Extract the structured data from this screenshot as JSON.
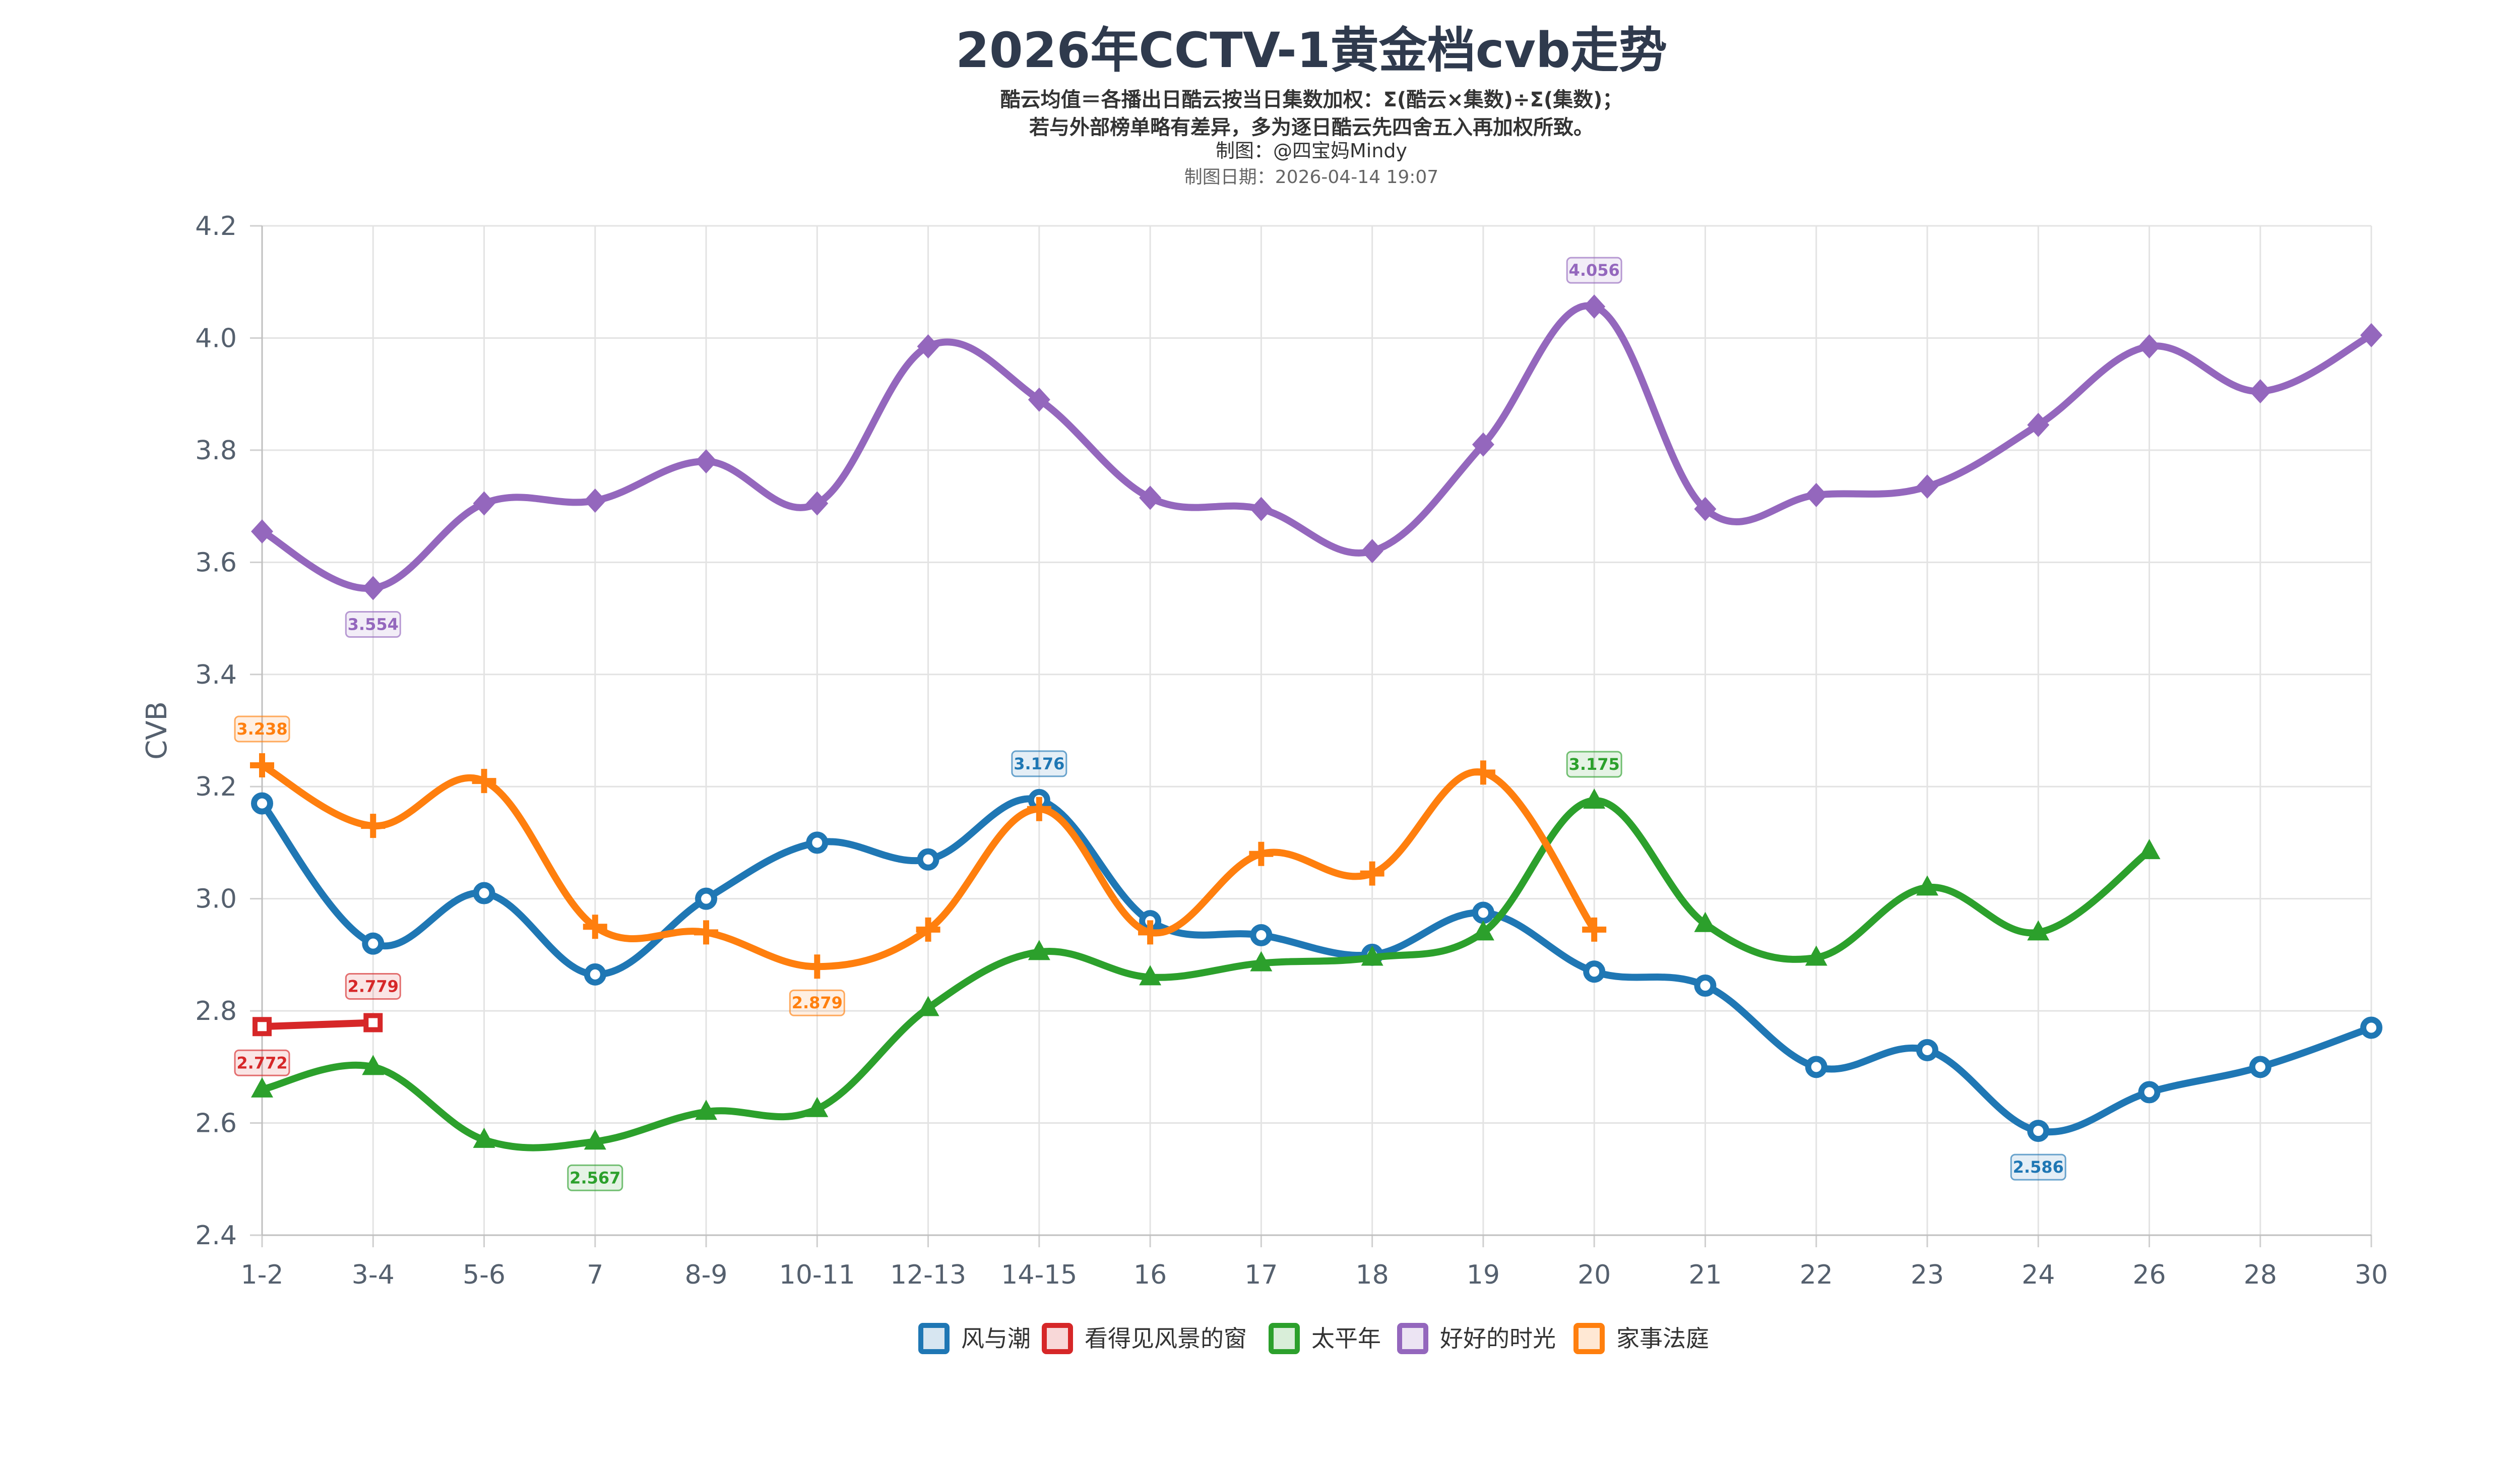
{
  "title": "2026年CCTV-1黄金档cvb走势",
  "subtitle_line1": "酷云均值＝各播出日酷云按当日集数加权：Σ(酷云×集数)÷Σ(集数)；",
  "subtitle_line2": "若与外部榜单略有差异，多为逐日酷云先四舍五入再加权所致。",
  "credit": "制图：@四宝妈Mindy",
  "date": "制图日期：2026-04-14 19:07",
  "chart_data": {
    "type": "line",
    "title": "2026年CCTV-1黄金档cvb走势",
    "xlabel": "",
    "ylabel": "CVB",
    "ylim": [
      2.4,
      4.2
    ],
    "yticks": [
      "2.4",
      "2.6",
      "2.8",
      "3.0",
      "3.2",
      "3.4",
      "3.6",
      "3.8",
      "4.0",
      "4.2"
    ],
    "categories": [
      "1-2",
      "3-4",
      "5-6",
      "7",
      "8-9",
      "10-11",
      "12-13",
      "14-15",
      "16",
      "17",
      "18",
      "19",
      "20",
      "21",
      "22",
      "23",
      "24",
      "26",
      "28",
      "30"
    ],
    "grid": true,
    "legend": "bottom",
    "series": [
      {
        "name": "风与潮",
        "color": "#1f77b4",
        "marker": "circle",
        "values": [
          3.17,
          2.92,
          3.01,
          2.865,
          3.0,
          3.1,
          3.07,
          3.176,
          2.96,
          2.935,
          2.9,
          2.975,
          2.87,
          2.845,
          2.7,
          2.73,
          2.586,
          2.655,
          2.7,
          2.77
        ],
        "labels": [
          {
            "index": 7,
            "text": "3.176",
            "pos": "above"
          },
          {
            "index": 16,
            "text": "2.586",
            "pos": "below"
          }
        ]
      },
      {
        "name": "看得见风景的窗",
        "color": "#d62728",
        "marker": "square",
        "values": [
          2.772,
          2.779,
          null,
          null,
          null,
          null,
          null,
          null,
          null,
          null,
          null,
          null,
          null,
          null,
          null,
          null,
          null,
          null,
          null,
          null
        ],
        "labels": [
          {
            "index": 0,
            "text": "2.772",
            "pos": "below"
          },
          {
            "index": 1,
            "text": "2.779",
            "pos": "above"
          }
        ]
      },
      {
        "name": "太平年",
        "color": "#2ca02c",
        "marker": "triangle",
        "values": [
          2.66,
          2.7,
          2.57,
          2.567,
          2.62,
          2.625,
          2.805,
          2.905,
          2.86,
          2.885,
          2.895,
          2.94,
          3.175,
          2.955,
          2.895,
          3.02,
          2.94,
          3.085,
          null,
          null
        ],
        "labels": [
          {
            "index": 3,
            "text": "2.567",
            "pos": "below"
          },
          {
            "index": 12,
            "text": "3.175",
            "pos": "above"
          }
        ]
      },
      {
        "name": "好好的时光",
        "color": "#9467bd",
        "marker": "diamond",
        "values": [
          3.655,
          3.554,
          3.705,
          3.71,
          3.78,
          3.705,
          3.985,
          3.89,
          3.715,
          3.695,
          3.62,
          3.81,
          4.056,
          3.695,
          3.72,
          3.735,
          3.845,
          3.985,
          3.905,
          4.005
        ],
        "labels": [
          {
            "index": 1,
            "text": "3.554",
            "pos": "below"
          },
          {
            "index": 12,
            "text": "4.056",
            "pos": "above"
          }
        ]
      },
      {
        "name": "家事法庭",
        "color": "#ff7f0e",
        "marker": "cross",
        "values": [
          3.238,
          3.13,
          3.21,
          2.95,
          2.94,
          2.879,
          2.945,
          3.16,
          2.94,
          3.08,
          3.045,
          3.225,
          2.945,
          null,
          null,
          null,
          null,
          null,
          null,
          null
        ],
        "labels": [
          {
            "index": 0,
            "text": "3.238",
            "pos": "above"
          },
          {
            "index": 5,
            "text": "2.879",
            "pos": "below"
          }
        ]
      }
    ]
  }
}
